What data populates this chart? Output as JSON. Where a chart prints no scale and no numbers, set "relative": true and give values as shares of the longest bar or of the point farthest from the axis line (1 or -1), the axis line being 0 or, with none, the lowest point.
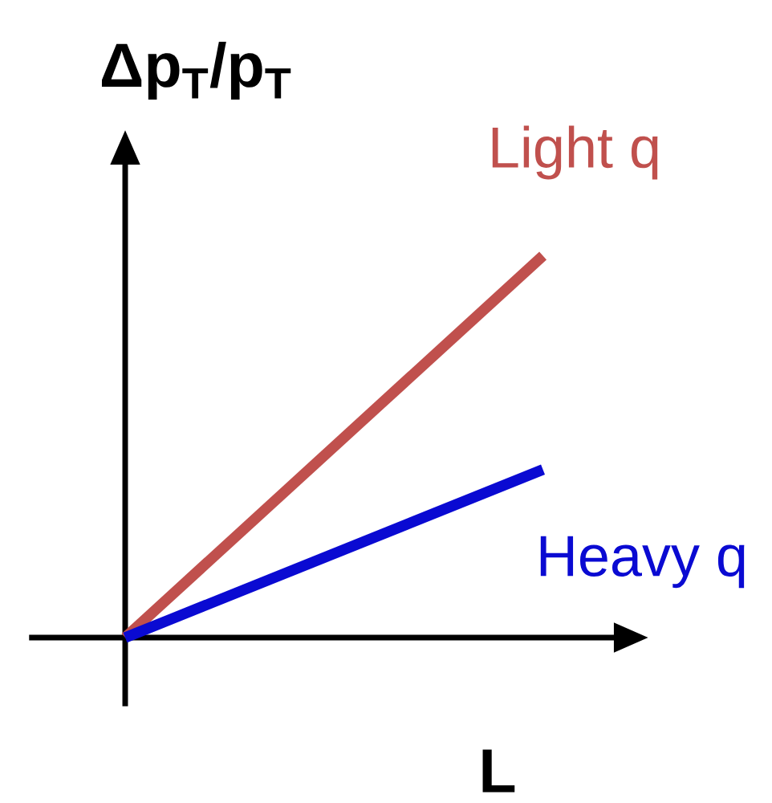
{
  "chart_data": {
    "type": "line",
    "title": "Δp$_{T}$/p$_{T}$",
    "annotations": [
      "L"
    ],
    "relative": true,
    "categories": [
      null,
      null
    ],
    "series": [
      {
        "name": "Light q",
        "color": "#c0504d",
        "values": [
          0,
          1
        ]
      },
      {
        "name": "Heavy q",
        "color": "#0a0ad2",
        "values": [
          0,
          0.44
        ]
      }
    ],
    "line_style": "solid"
  }
}
